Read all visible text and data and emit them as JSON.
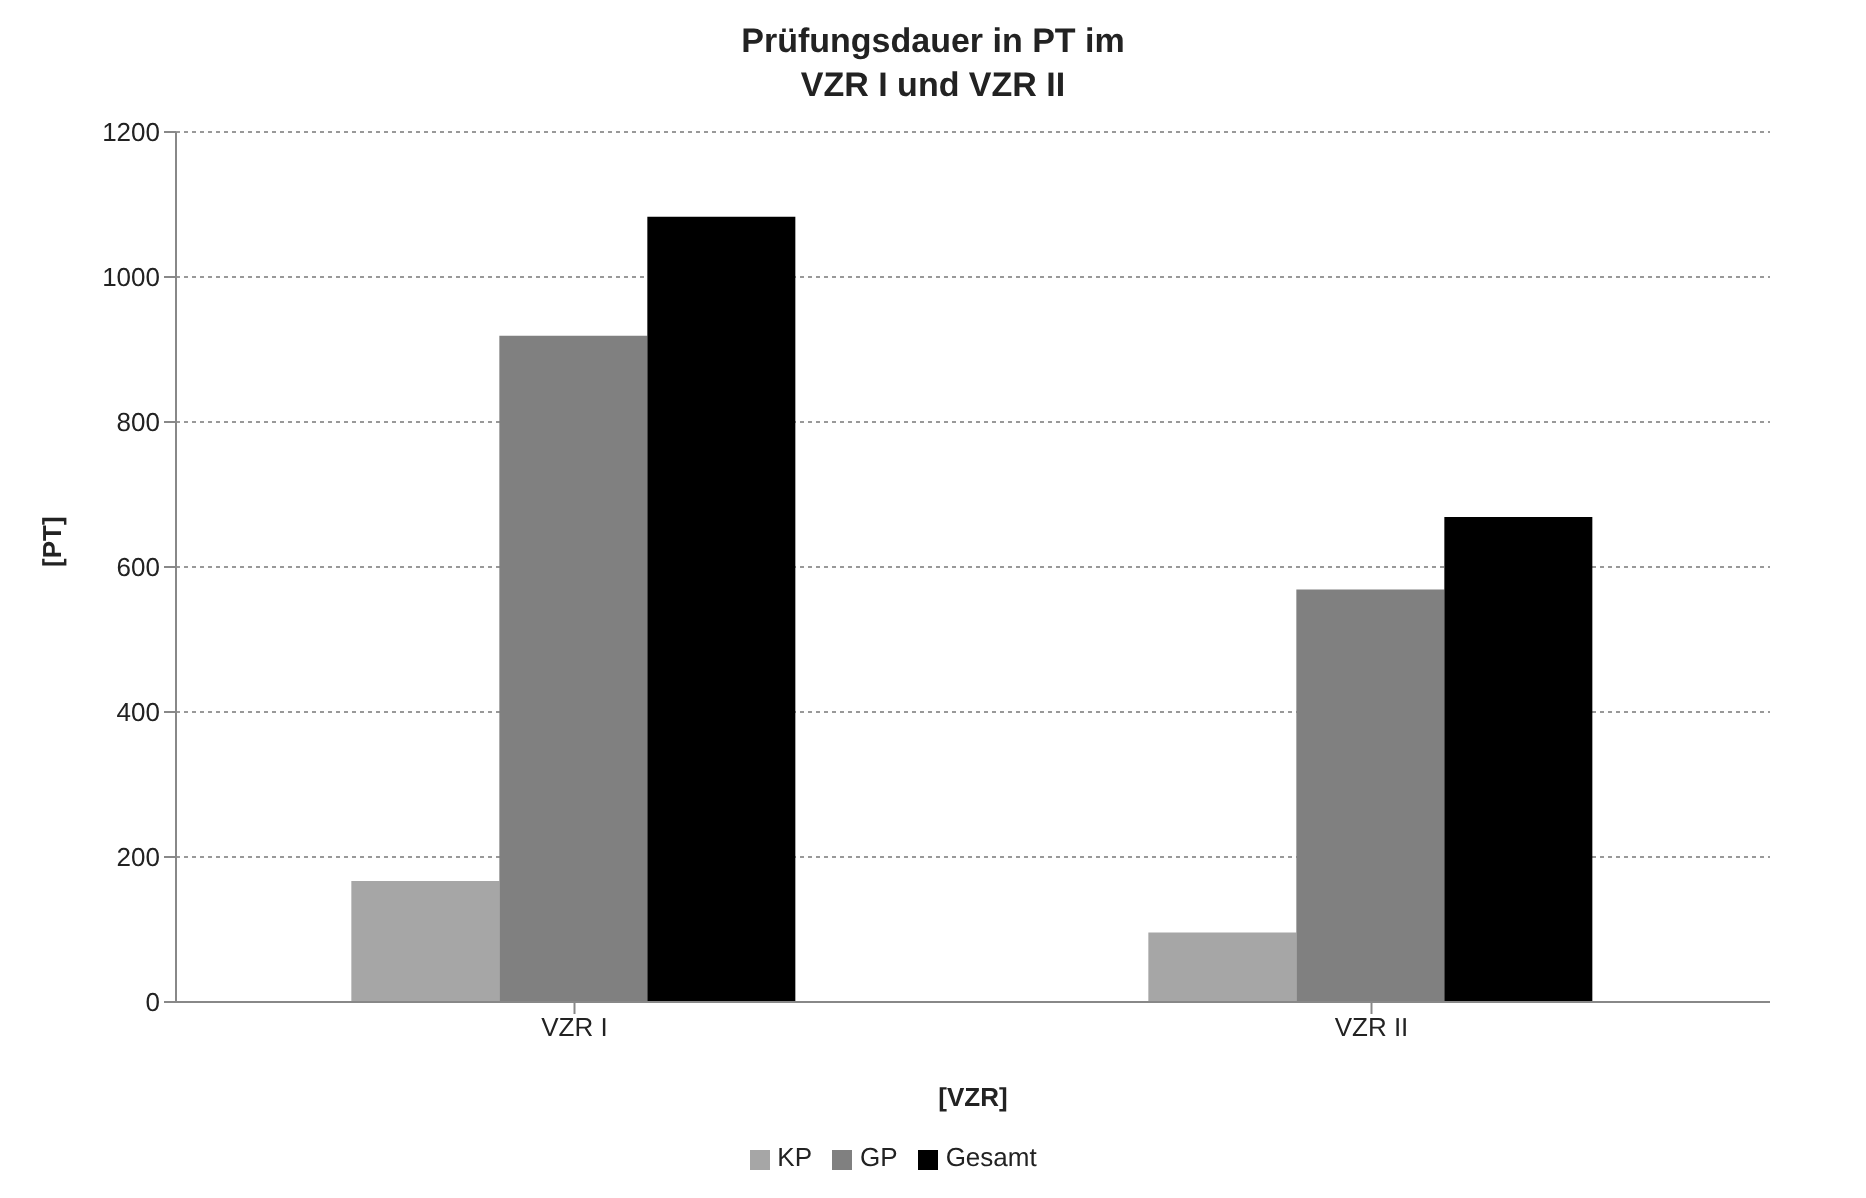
{
  "chart_data": {
    "type": "bar",
    "title": "Prüfungsdauer in PT im\nVZR I und VZR II",
    "xlabel": "[VZR]",
    "ylabel": "[PT]",
    "categories": [
      "VZR I",
      "VZR II"
    ],
    "series": [
      {
        "name": "KP",
        "color": "#a6a6a6",
        "values": [
          167,
          96
        ]
      },
      {
        "name": "GP",
        "color": "#808080",
        "values": [
          919,
          569
        ]
      },
      {
        "name": "Gesamt",
        "color": "#000000",
        "values": [
          1083,
          669
        ]
      }
    ],
    "ylim": [
      0,
      1200
    ],
    "yticks": [
      0,
      200,
      400,
      600,
      800,
      1000,
      1200
    ],
    "grid": "y",
    "legend": "bottom"
  }
}
